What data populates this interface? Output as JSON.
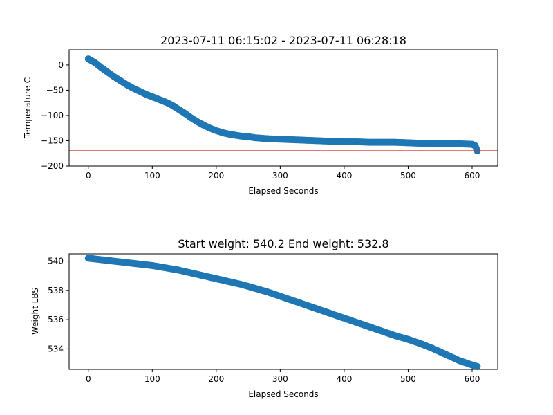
{
  "chart_data": [
    {
      "type": "scatter",
      "title": "2023-07-11 06:15:02 - 2023-07-11 06:28:18",
      "xlabel": "Elapsed Seconds",
      "ylabel": "Temperature C",
      "xlim": [
        -30,
        640
      ],
      "ylim": [
        -200,
        30
      ],
      "xticks": [
        0,
        100,
        200,
        300,
        400,
        500,
        600
      ],
      "yticks": [
        -200,
        -150,
        -100,
        -50,
        0
      ],
      "grid": false,
      "marker_color": "#1f77b4",
      "reference_line": {
        "y": -170,
        "color": "#d62728"
      },
      "series": [
        {
          "x": [
            0,
            10,
            20,
            30,
            40,
            50,
            60,
            70,
            80,
            90,
            100,
            110,
            120,
            130,
            140,
            150,
            160,
            170,
            180,
            190,
            200,
            210,
            220,
            230,
            240,
            250,
            260,
            280,
            300,
            320,
            340,
            360,
            380,
            400,
            420,
            440,
            460,
            480,
            500,
            520,
            540,
            560,
            580,
            600,
            605,
            608
          ],
          "y": [
            12,
            5,
            -5,
            -14,
            -23,
            -31,
            -39,
            -46,
            -52,
            -58,
            -63,
            -68,
            -73,
            -79,
            -87,
            -95,
            -104,
            -112,
            -119,
            -125,
            -130,
            -134,
            -137,
            -139,
            -141,
            -142,
            -144,
            -146,
            -147,
            -148,
            -149,
            -150,
            -151,
            -152,
            -152,
            -153,
            -153,
            -153,
            -154,
            -155,
            -155,
            -156,
            -156,
            -157,
            -160,
            -170
          ]
        }
      ]
    },
    {
      "type": "scatter",
      "title": "Start weight: 540.2 End weight: 532.8",
      "xlabel": "Elapsed Seconds",
      "ylabel": "Weight LBS",
      "xlim": [
        -30,
        640
      ],
      "ylim": [
        532.6,
        540.5
      ],
      "xticks": [
        0,
        100,
        200,
        300,
        400,
        500,
        600
      ],
      "yticks": [
        534,
        536,
        538,
        540
      ],
      "grid": false,
      "marker_color": "#1f77b4",
      "series": [
        {
          "x": [
            0,
            10,
            20,
            30,
            40,
            50,
            60,
            70,
            80,
            90,
            100,
            120,
            140,
            160,
            180,
            200,
            220,
            240,
            260,
            280,
            300,
            320,
            340,
            360,
            380,
            400,
            420,
            440,
            460,
            480,
            500,
            520,
            540,
            560,
            580,
            600,
            608
          ],
          "y": [
            540.2,
            540.15,
            540.1,
            540.05,
            540.0,
            539.95,
            539.9,
            539.85,
            539.8,
            539.75,
            539.7,
            539.55,
            539.4,
            539.2,
            539.0,
            538.8,
            538.6,
            538.4,
            538.15,
            537.9,
            537.6,
            537.3,
            537.0,
            536.7,
            536.4,
            536.1,
            535.8,
            535.5,
            535.2,
            534.9,
            534.65,
            534.35,
            534.0,
            533.6,
            533.2,
            532.9,
            532.8
          ]
        }
      ]
    }
  ]
}
